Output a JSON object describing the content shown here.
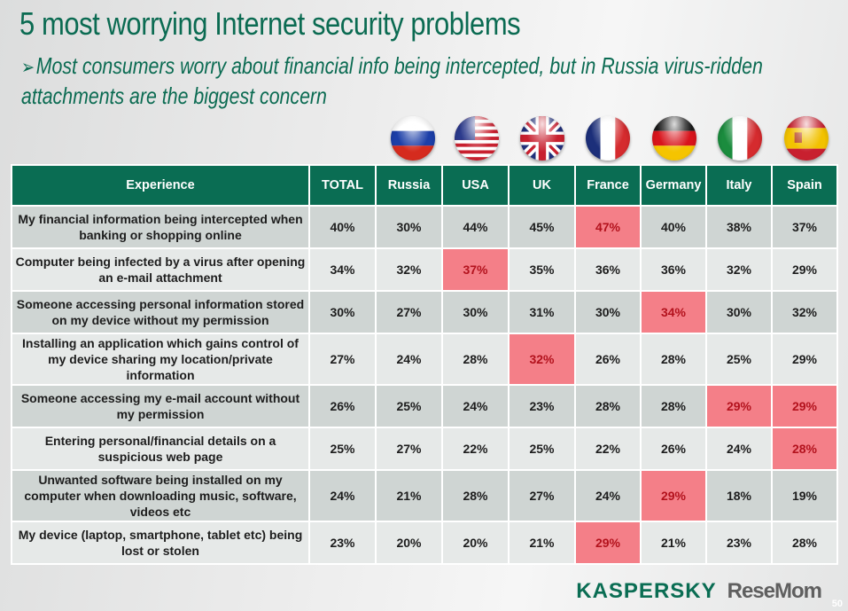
{
  "title": "5 most worrying Internet security problems",
  "subtitle": "Most consumers worry about financial info being intercepted, but in Russia virus-ridden attachments are the biggest concern",
  "bullet_icon": "arrow-bullet-icon",
  "colors": {
    "header_bg": "#0a6d53",
    "title_green": "#0b6b52",
    "highlight_bg": "#f47f88",
    "highlight_text": "#b3121d",
    "row_dark": "#cfd5d3",
    "row_light": "#e6e9e8"
  },
  "flags": [
    "russia-flag-icon",
    "usa-flag-icon",
    "uk-flag-icon",
    "france-flag-icon",
    "germany-flag-icon",
    "italy-flag-icon",
    "spain-flag-icon"
  ],
  "table": {
    "headers": [
      "Experience",
      "TOTAL",
      "Russia",
      "USA",
      "UK",
      "France",
      "Germany",
      "Italy",
      "Spain"
    ],
    "rows": [
      {
        "experience": "My financial information being intercepted when banking or shopping online",
        "values": [
          "40%",
          "30%",
          "44%",
          "45%",
          "47%",
          "40%",
          "38%",
          "37%"
        ],
        "highlight": [
          4
        ]
      },
      {
        "experience": "Computer being infected by a virus after opening an e-mail attachment",
        "values": [
          "34%",
          "32%",
          "37%",
          "35%",
          "36%",
          "36%",
          "32%",
          "29%"
        ],
        "highlight": [
          2
        ]
      },
      {
        "experience": "Someone accessing personal information stored on my device without my permission",
        "values": [
          "30%",
          "27%",
          "30%",
          "31%",
          "30%",
          "34%",
          "30%",
          "32%"
        ],
        "highlight": [
          5
        ]
      },
      {
        "experience": "Installing an application which gains control of my device sharing my location/private information",
        "values": [
          "27%",
          "24%",
          "28%",
          "32%",
          "26%",
          "28%",
          "25%",
          "29%"
        ],
        "highlight": [
          3
        ]
      },
      {
        "experience": "Someone accessing my e-mail account without my permission",
        "values": [
          "26%",
          "25%",
          "24%",
          "23%",
          "28%",
          "28%",
          "29%",
          "29%"
        ],
        "highlight": [
          6,
          7
        ]
      },
      {
        "experience": "Entering personal/financial details on a suspicious web page",
        "values": [
          "25%",
          "27%",
          "22%",
          "25%",
          "22%",
          "26%",
          "24%",
          "28%"
        ],
        "highlight": [
          7
        ]
      },
      {
        "experience": "Unwanted software being installed on my computer when downloading music, software, videos etc",
        "values": [
          "24%",
          "21%",
          "28%",
          "27%",
          "24%",
          "29%",
          "18%",
          "19%"
        ],
        "highlight": [
          5
        ]
      },
      {
        "experience": "My device (laptop, smartphone, tablet etc) being lost or stolen",
        "values": [
          "23%",
          "20%",
          "20%",
          "21%",
          "29%",
          "21%",
          "23%",
          "28%"
        ],
        "highlight": [
          4
        ]
      }
    ]
  },
  "footer": {
    "logo": "KASPERSKY",
    "watermark": "ReseMom",
    "page_number": "50"
  }
}
